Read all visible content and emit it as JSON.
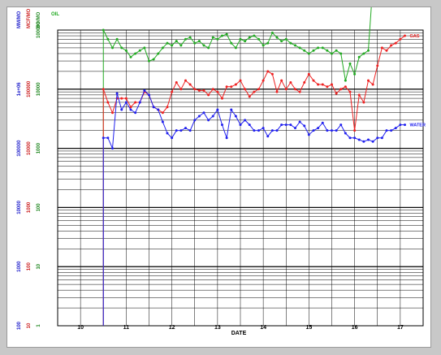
{
  "chart_data": {
    "type": "line",
    "xlabel": "DATE",
    "x_ticks": [
      "10",
      "11",
      "12",
      "13",
      "14",
      "15",
      "16",
      "17"
    ],
    "xlim": [
      9.5,
      17.5
    ],
    "yscale": "log",
    "grid": true,
    "ylim_decades": [
      0,
      5
    ],
    "y_axes": [
      {
        "name": "MM/MO",
        "color": "#2222cc",
        "ticks": [
          "100",
          "1000",
          "10000",
          "100000",
          "1e+06"
        ]
      },
      {
        "name": "MCF/MO",
        "color": "#cc2222",
        "ticks": [
          "10",
          "100",
          "1000",
          "10000",
          "100000"
        ]
      },
      {
        "name": "BO/MO",
        "color": "#228822",
        "ticks": [
          "1",
          "10",
          "100",
          "1000",
          "10000",
          "100000"
        ]
      }
    ],
    "corner_label": "OIL",
    "series": [
      {
        "name": "OIL",
        "color": "#22aa22",
        "x": [
          10.5,
          10.6,
          10.7,
          10.8,
          10.9,
          11.0,
          11.1,
          11.2,
          11.3,
          11.4,
          11.5,
          11.6,
          11.7,
          11.8,
          11.9,
          12.0,
          12.1,
          12.2,
          12.3,
          12.4,
          12.5,
          12.6,
          12.7,
          12.8,
          12.9,
          13.0,
          13.1,
          13.2,
          13.3,
          13.4,
          13.5,
          13.6,
          13.7,
          13.8,
          13.9,
          14.0,
          14.1,
          14.2,
          14.3,
          14.4,
          14.5,
          14.6,
          14.7,
          14.8,
          14.9,
          15.0,
          15.1,
          15.2,
          15.3,
          15.4,
          15.5,
          15.6,
          15.7,
          15.8,
          15.9,
          16.0,
          16.1,
          16.2,
          16.3,
          16.4,
          16.5,
          16.6,
          16.7,
          16.8,
          16.9,
          17.0,
          17.1
        ],
        "y": [
          100000,
          70000,
          50000,
          70000,
          50000,
          45000,
          35000,
          40000,
          45000,
          50000,
          30000,
          32000,
          40000,
          50000,
          60000,
          55000,
          65000,
          55000,
          70000,
          75000,
          60000,
          65000,
          55000,
          50000,
          75000,
          70000,
          80000,
          85000,
          60000,
          50000,
          70000,
          65000,
          75000,
          80000,
          70000,
          55000,
          60000,
          90000,
          75000,
          65000,
          70000,
          60000,
          55000,
          50000,
          45000,
          40000,
          45000,
          50000,
          50000,
          45000,
          40000,
          45000,
          40000,
          14000,
          27000,
          18000,
          35000,
          40000,
          45000,
          600000,
          400000,
          450000,
          420000,
          400000,
          380000,
          360000,
          340000
        ]
      },
      {
        "name": "GAS",
        "color": "#ee2222",
        "x": [
          10.5,
          10.6,
          10.7,
          10.8,
          10.9,
          11.0,
          11.1,
          11.2,
          11.3,
          11.4,
          11.5,
          11.6,
          11.7,
          11.8,
          11.9,
          12.0,
          12.1,
          12.2,
          12.3,
          12.4,
          12.5,
          12.6,
          12.7,
          12.8,
          12.9,
          13.0,
          13.1,
          13.2,
          13.3,
          13.4,
          13.5,
          13.6,
          13.7,
          13.8,
          13.9,
          14.0,
          14.1,
          14.2,
          14.3,
          14.4,
          14.5,
          14.6,
          14.7,
          14.8,
          14.9,
          15.0,
          15.1,
          15.2,
          15.3,
          15.4,
          15.5,
          15.6,
          15.7,
          15.8,
          15.9,
          16.0,
          16.1,
          16.2,
          16.3,
          16.4,
          16.5,
          16.6,
          16.7,
          16.8,
          16.9,
          17.0,
          17.1
        ],
        "y": [
          10000,
          6000,
          4000,
          7000,
          7000,
          7000,
          5000,
          6000,
          6000,
          9000,
          8000,
          5000,
          4500,
          4000,
          5000,
          9000,
          13000,
          10000,
          14000,
          12000,
          10000,
          9500,
          9500,
          8000,
          10000,
          9000,
          7000,
          11000,
          11000,
          12000,
          14000,
          10000,
          7500,
          9000,
          10000,
          14000,
          20000,
          18000,
          9000,
          14000,
          10000,
          13000,
          10000,
          9000,
          13000,
          18000,
          14000,
          12000,
          12000,
          11000,
          12000,
          8500,
          10000,
          11000,
          9000,
          2000,
          8000,
          6000,
          14000,
          12000,
          25000,
          50000,
          45000,
          55000,
          60000,
          70000,
          80000
        ]
      },
      {
        "name": "WATER",
        "color": "#2222ee",
        "x": [
          10.5,
          10.6,
          10.7,
          10.8,
          10.9,
          11.0,
          11.1,
          11.2,
          11.3,
          11.4,
          11.5,
          11.6,
          11.7,
          11.8,
          11.9,
          12.0,
          12.1,
          12.2,
          12.3,
          12.4,
          12.5,
          12.6,
          12.7,
          12.8,
          12.9,
          13.0,
          13.1,
          13.2,
          13.3,
          13.4,
          13.5,
          13.6,
          13.7,
          13.8,
          13.9,
          14.0,
          14.1,
          14.2,
          14.3,
          14.4,
          14.5,
          14.6,
          14.7,
          14.8,
          14.9,
          15.0,
          15.1,
          15.2,
          15.3,
          15.4,
          15.5,
          15.6,
          15.7,
          15.8,
          15.9,
          16.0,
          16.1,
          16.2,
          16.3,
          16.4,
          16.5,
          16.6,
          16.7,
          16.8,
          16.9,
          17.0,
          17.1
        ],
        "y": [
          1500,
          1500,
          1000,
          8500,
          4500,
          6000,
          4500,
          4000,
          6000,
          9500,
          8000,
          5000,
          4500,
          2800,
          1800,
          1500,
          2000,
          2000,
          2200,
          2000,
          3000,
          3500,
          4000,
          3000,
          3500,
          4500,
          2500,
          1500,
          4500,
          3500,
          2500,
          3000,
          2500,
          2000,
          2000,
          2200,
          1600,
          2000,
          2000,
          2500,
          2500,
          2500,
          2200,
          2800,
          2400,
          1700,
          2000,
          2200,
          2700,
          2000,
          2000,
          2000,
          2500,
          1800,
          1500,
          1500,
          1400,
          1300,
          1400,
          1300,
          1500,
          1500,
          2000,
          2000,
          2200,
          2500,
          2500
        ]
      }
    ]
  }
}
